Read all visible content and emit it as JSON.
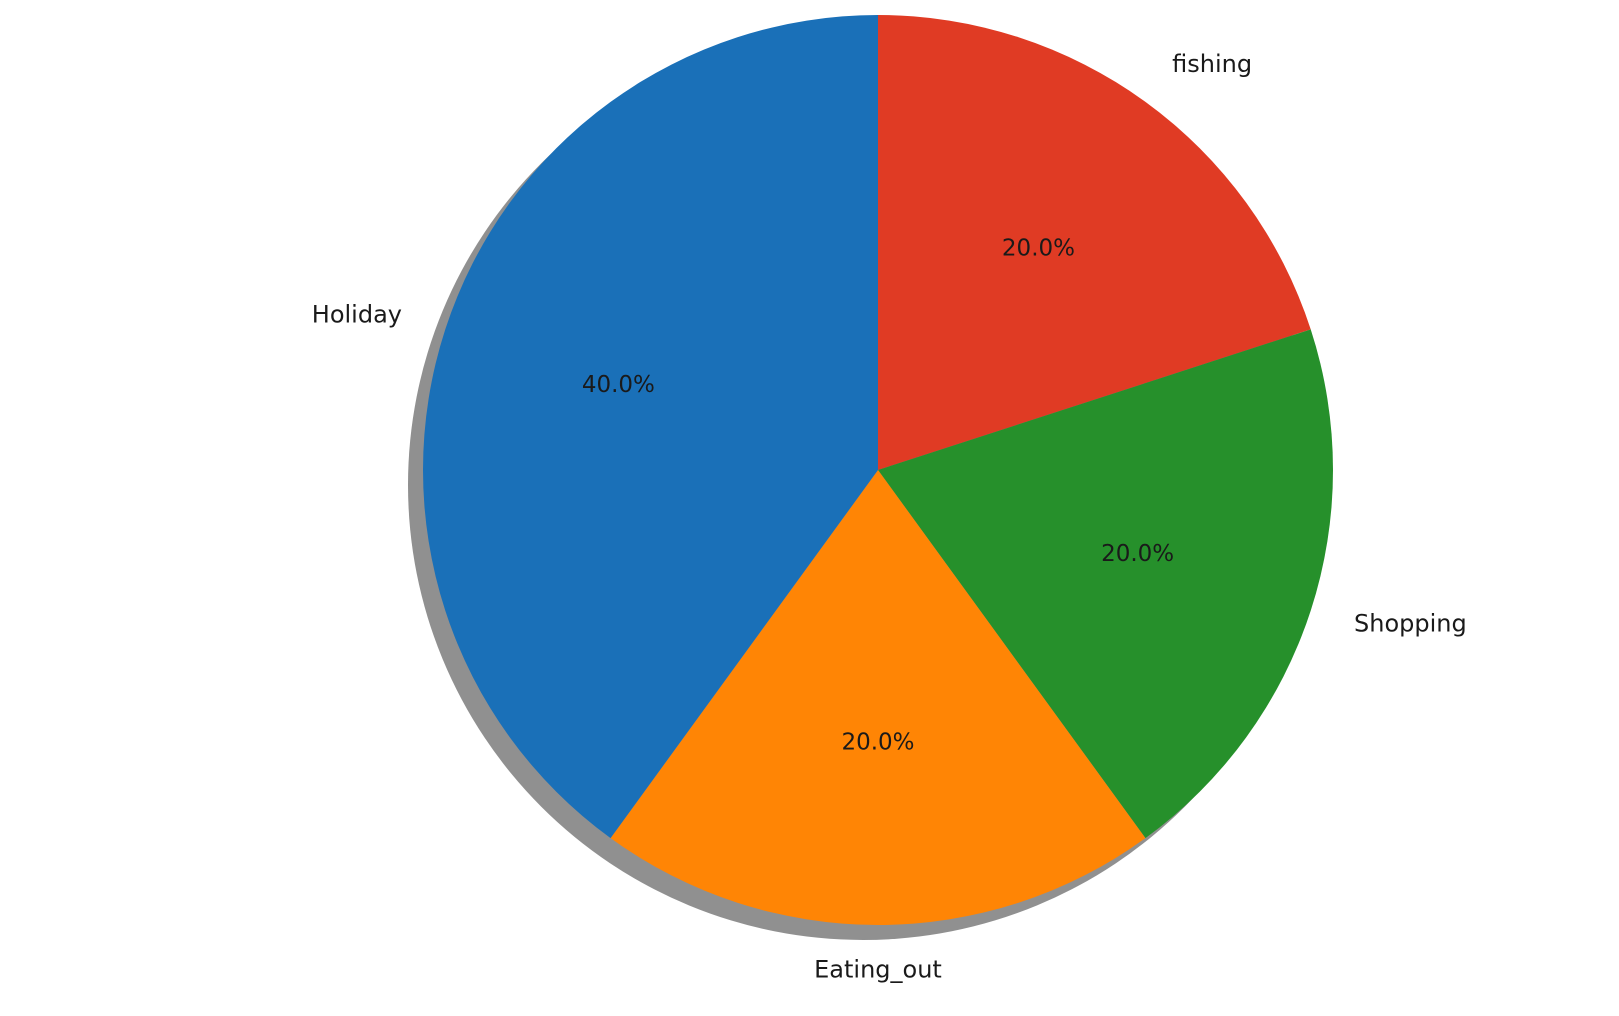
{
  "chart_data": {
    "type": "pie",
    "categories": [
      "fishing",
      "Shopping",
      "Eating_out",
      "Holiday"
    ],
    "values": [
      20.0,
      20.0,
      20.0,
      40.0
    ],
    "percent_labels": [
      "20.0%",
      "20.0%",
      "20.0%",
      "40.0%"
    ],
    "colors": [
      "#e03b24",
      "#26902b",
      "#ff8505",
      "#1a70b8"
    ],
    "start_angle_deg": 90,
    "direction": "clockwise",
    "shadow": true
  }
}
